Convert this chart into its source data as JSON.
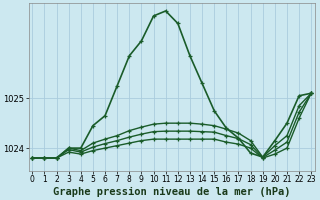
{
  "background_color": "#cce8f0",
  "grid_color": "#aaccdd",
  "line_color": "#1a5c2a",
  "title": "Graphe pression niveau de la mer (hPa)",
  "xlabel_ticks": [
    0,
    1,
    2,
    3,
    4,
    5,
    6,
    7,
    8,
    9,
    10,
    11,
    12,
    13,
    14,
    15,
    16,
    17,
    18,
    19,
    20,
    21,
    22,
    23
  ],
  "yticks": [
    1024,
    1025
  ],
  "ylim": [
    1023.55,
    1026.9
  ],
  "xlim": [
    -0.3,
    23.3
  ],
  "series": [
    [
      1023.8,
      1023.8,
      1023.8,
      1024.0,
      1024.0,
      1024.45,
      1024.65,
      1025.25,
      1025.85,
      1026.15,
      1026.65,
      1026.75,
      1026.5,
      1025.85,
      1025.3,
      1024.75,
      1024.4,
      1024.2,
      1023.9,
      1023.82,
      1024.15,
      1024.5,
      1025.05,
      1025.1
    ],
    [
      1023.8,
      1023.8,
      1023.8,
      1024.0,
      1023.95,
      1024.1,
      1024.18,
      1024.25,
      1024.35,
      1024.42,
      1024.48,
      1024.5,
      1024.5,
      1024.5,
      1024.48,
      1024.45,
      1024.38,
      1024.3,
      1024.15,
      1023.82,
      1024.05,
      1024.25,
      1024.85,
      1025.1
    ],
    [
      1023.8,
      1023.8,
      1023.8,
      1023.92,
      1023.88,
      1023.95,
      1024.0,
      1024.05,
      1024.1,
      1024.15,
      1024.18,
      1024.18,
      1024.18,
      1024.18,
      1024.18,
      1024.18,
      1024.12,
      1024.08,
      1024.0,
      1023.8,
      1023.88,
      1024.0,
      1024.6,
      1025.1
    ],
    [
      1023.8,
      1023.8,
      1023.8,
      1023.97,
      1023.92,
      1024.02,
      1024.09,
      1024.15,
      1024.22,
      1024.28,
      1024.33,
      1024.34,
      1024.34,
      1024.34,
      1024.33,
      1024.32,
      1024.25,
      1024.19,
      1024.07,
      1023.81,
      1023.96,
      1024.12,
      1024.72,
      1025.1
    ]
  ],
  "title_fontsize": 7.5,
  "tick_fontsize": 5.5
}
